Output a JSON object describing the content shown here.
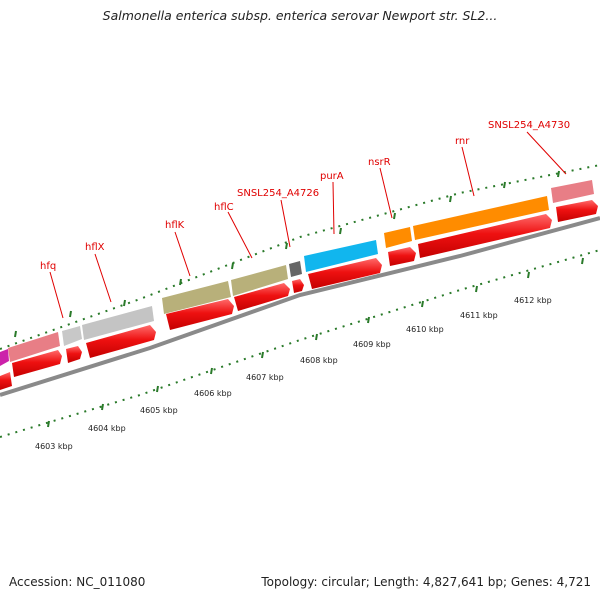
{
  "title": "Salmonella enterica subsp. enterica serovar Newport str. SL2...",
  "footer": {
    "accession": "Accession: NC_011080",
    "topology": "Topology: circular; Length: 4,827,641 bp; Genes: 4,721"
  },
  "colors": {
    "cds_red": "#ee1111",
    "backbone": "#8a8a8a",
    "label_red": "#e00000",
    "tick_green": "#2a7a2a"
  },
  "gene_labels": [
    {
      "id": "hfq",
      "text": "hfq"
    },
    {
      "id": "hflx",
      "text": "hflX"
    },
    {
      "id": "hflk",
      "text": "hflK"
    },
    {
      "id": "hflc",
      "text": "hflC"
    },
    {
      "id": "snsl254-a4726",
      "text": "SNSL254_A4726"
    },
    {
      "id": "pura",
      "text": "purA"
    },
    {
      "id": "nsrr",
      "text": "nsrR"
    },
    {
      "id": "rnr",
      "text": "rnr"
    },
    {
      "id": "snsl254-a4730",
      "text": "SNSL254_A4730"
    }
  ],
  "kbp_labels": [
    "4603 kbp",
    "4604 kbp",
    "4605 kbp",
    "4606 kbp",
    "4607 kbp",
    "4608 kbp",
    "4609 kbp",
    "4610 kbp",
    "4611 kbp",
    "4612 kbp"
  ]
}
